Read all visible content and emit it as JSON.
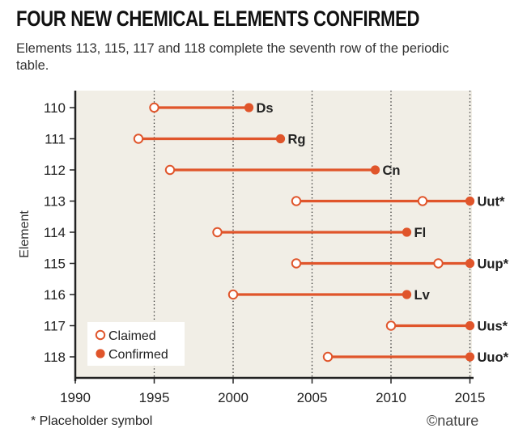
{
  "title": "FOUR NEW CHEMICAL ELEMENTS CONFIRMED",
  "subtitle": "Elements 113, 115, 117 and 118 complete the seventh row of the periodic table.",
  "footnote": "* Placeholder symbol",
  "credit": "©nature",
  "colors": {
    "accent": "#e0552b",
    "plot_bg": "#f1eee6",
    "axis": "#222222"
  },
  "chart_data": {
    "type": "dumbbell",
    "title": "FOUR NEW CHEMICAL ELEMENTS CONFIRMED",
    "xlabel": "",
    "ylabel": "Element",
    "xlim": [
      1990,
      2016
    ],
    "xticks": [
      "1990",
      "1995",
      "2000",
      "2005",
      "2010",
      "2015"
    ],
    "xtick_values": [
      1990,
      1995,
      2000,
      2005,
      2010,
      2015
    ],
    "grid": "vertical dotted",
    "legend": {
      "position": "bottom-left",
      "claimed": "Claimed",
      "confirmed": "Confirmed"
    },
    "rows": [
      {
        "element": "110",
        "symbol": "Ds",
        "claimed": [
          1995
        ],
        "confirmed": 2001
      },
      {
        "element": "111",
        "symbol": "Rg",
        "claimed": [
          1994
        ],
        "confirmed": 2003
      },
      {
        "element": "112",
        "symbol": "Cn",
        "claimed": [
          1996
        ],
        "confirmed": 2009
      },
      {
        "element": "113",
        "symbol": "Uut*",
        "claimed": [
          2004,
          2012
        ],
        "confirmed": 2015
      },
      {
        "element": "114",
        "symbol": "Fl",
        "claimed": [
          1999
        ],
        "confirmed": 2011
      },
      {
        "element": "115",
        "symbol": "Uup*",
        "claimed": [
          2004,
          2013
        ],
        "confirmed": 2015
      },
      {
        "element": "116",
        "symbol": "Lv",
        "claimed": [
          2000
        ],
        "confirmed": 2011
      },
      {
        "element": "117",
        "symbol": "Uus*",
        "claimed": [
          2010
        ],
        "confirmed": 2015
      },
      {
        "element": "118",
        "symbol": "Uuo*",
        "claimed": [
          2006
        ],
        "confirmed": 2015
      }
    ]
  }
}
